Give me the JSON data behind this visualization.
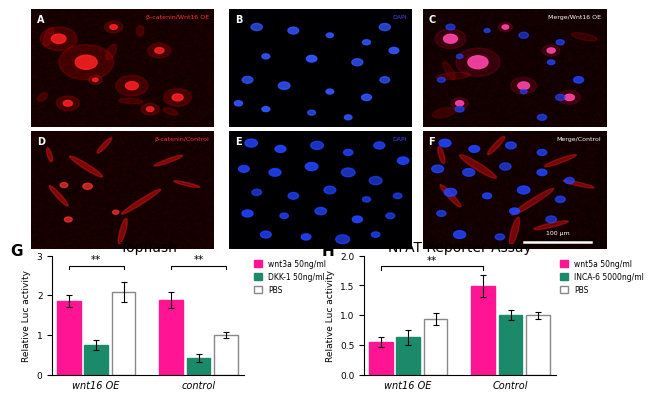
{
  "panel_G": {
    "title": "Topflash",
    "panel_label": "G",
    "ylabel": "Relative Luc activity",
    "groups": [
      "wnt16 OE",
      "control"
    ],
    "conditions": [
      "wnt3a 50ng/ml",
      "DKK-1 50ng/ml",
      "PBS"
    ],
    "colors": [
      "#FF1493",
      "#1B8A6B",
      "#FFFFFF"
    ],
    "bar_edgecolors": [
      "#FF1493",
      "#1B8A6B",
      "#888888"
    ],
    "values": [
      [
        1.85,
        0.75,
        2.08
      ],
      [
        1.88,
        0.42,
        1.0
      ]
    ],
    "errors": [
      [
        0.15,
        0.12,
        0.25
      ],
      [
        0.2,
        0.1,
        0.08
      ]
    ],
    "ylim": [
      0,
      3
    ],
    "yticks": [
      0,
      1,
      2,
      3
    ]
  },
  "panel_H": {
    "title": "NFAT Reporter Assay",
    "panel_label": "H",
    "ylabel": "Relative Luc activity",
    "groups": [
      "wnt16 OE",
      "Control"
    ],
    "conditions": [
      "wnt5a 50ng/ml",
      "INCA-6 5000ng/ml",
      "PBS"
    ],
    "colors": [
      "#FF1493",
      "#1B8A6B",
      "#FFFFFF"
    ],
    "bar_edgecolors": [
      "#FF1493",
      "#1B8A6B",
      "#888888"
    ],
    "values": [
      [
        0.55,
        0.63,
        0.94
      ],
      [
        1.49,
        1.01,
        1.0
      ]
    ],
    "errors": [
      [
        0.08,
        0.12,
        0.1
      ],
      [
        0.18,
        0.08,
        0.06
      ]
    ],
    "ylim": [
      0,
      2.0
    ],
    "yticks": [
      0.0,
      0.5,
      1.0,
      1.5,
      2.0
    ]
  },
  "panel_labels_A_to_F": [
    "A",
    "B",
    "C",
    "D",
    "E",
    "F"
  ],
  "panel_A_label": "β-catenin/Wnt16 OE",
  "panel_B_label": "DAPI",
  "panel_C_label": "Merge/Wnt16 OE",
  "panel_D_label": "β-catenin/Control",
  "panel_E_label": "DAPI",
  "panel_F_label": "Merge/Control",
  "scale_bar_text": "100 μm",
  "panel_bg_colors": {
    "A": "#1a0000",
    "B": "#000005",
    "C": "#0d0005",
    "D": "#120000",
    "E": "#000005",
    "F": "#0d0005"
  },
  "label_text_colors": {
    "A": "#FF3333",
    "B": "#4444FF",
    "C": "#FFFFFF",
    "D": "#FF3333",
    "E": "#4444FF",
    "F": "#FFFFFF"
  }
}
